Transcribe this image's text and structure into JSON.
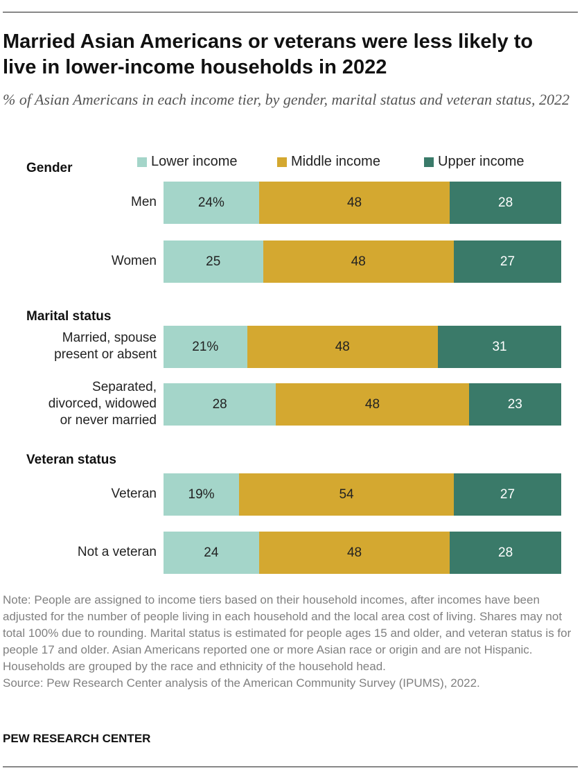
{
  "title": "Married Asian Americans or veterans were less likely to live in lower-income households in 2022",
  "subtitle": "% of Asian Americans in each income tier, by gender, marital status and veteran status, 2022",
  "colors": {
    "lower": "#a4d5c9",
    "middle": "#d4a830",
    "upper": "#3a7a69"
  },
  "chart_data": {
    "type": "bar",
    "orientation": "horizontal-stacked",
    "legend_placement": "top",
    "series_names": [
      "Lower income",
      "Middle income",
      "Upper income"
    ],
    "groups": [
      {
        "name": "Gender",
        "rows": [
          {
            "label": [
              "Men"
            ],
            "values": [
              24,
              48,
              28
            ],
            "labels": [
              "24%",
              "48",
              "28"
            ]
          },
          {
            "label": [
              "Women"
            ],
            "values": [
              25,
              48,
              27
            ],
            "labels": [
              "25",
              "48",
              "27"
            ]
          }
        ]
      },
      {
        "name": "Marital status",
        "rows": [
          {
            "label": [
              "Married, spouse",
              "present or absent"
            ],
            "values": [
              21,
              48,
              31
            ],
            "labels": [
              "21%",
              "48",
              "31"
            ]
          },
          {
            "label": [
              "Separated,",
              "divorced, widowed",
              "or never married"
            ],
            "values": [
              28,
              48,
              23
            ],
            "labels": [
              "28",
              "48",
              "23"
            ]
          }
        ]
      },
      {
        "name": "Veteran status",
        "rows": [
          {
            "label": [
              "Veteran"
            ],
            "values": [
              19,
              54,
              27
            ],
            "labels": [
              "19%",
              "54",
              "27"
            ]
          },
          {
            "label": [
              "Not a veteran"
            ],
            "values": [
              24,
              48,
              28
            ],
            "labels": [
              "24",
              "48",
              "28"
            ]
          }
        ]
      }
    ]
  },
  "note": "Note: People are assigned to income tiers based on their household incomes, after incomes have been adjusted for the number of people living in each household and the local area cost of living. Shares may not total 100% due to rounding. Marital status is estimated for people ages 15 and older, and veteran status is for people 17 and older. Asian Americans reported one or more Asian race or origin and are not Hispanic. Households are grouped by the race and ethnicity of the household head.",
  "source": "Source: Pew Research Center analysis of the American Community Survey (IPUMS), 2022.",
  "brand": "PEW RESEARCH CENTER"
}
